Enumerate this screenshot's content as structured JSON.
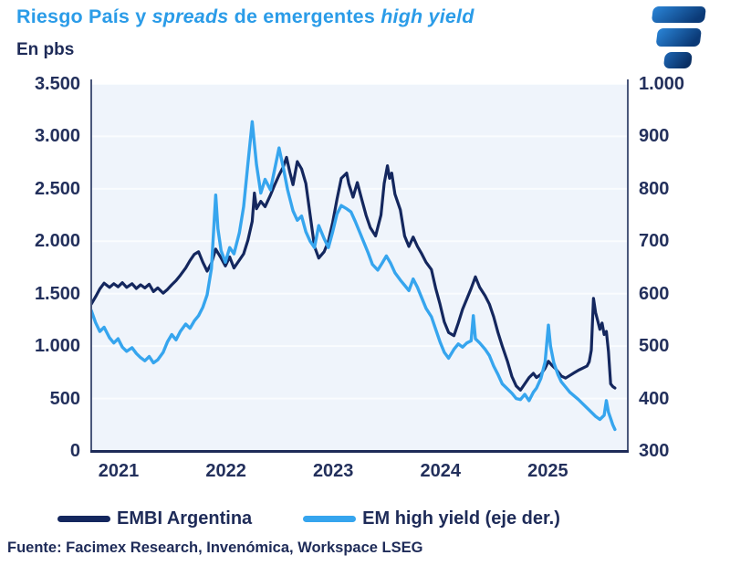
{
  "header": {
    "title_part1": "Riesgo País y ",
    "title_italic1": "spreads",
    "title_part2": " de emergentes ",
    "title_italic2": "high yield",
    "subtitle": "En pbs"
  },
  "colors": {
    "title_blue": "#2B9CE8",
    "text_navy": "#1E2B58",
    "embi_line": "#14275E",
    "emhy_line": "#36A5EE",
    "plot_bg": "#EFF4FB",
    "gridline": "#FAFCFE",
    "axis_border": "#1E2B58",
    "logo_light": "#2A85D8",
    "logo_dark": "#0B3A77"
  },
  "legend": [
    {
      "label": "EMBI Argentina",
      "color": "#14275E"
    },
    {
      "label": "EM high yield (eje der.)",
      "color": "#36A5EE"
    }
  ],
  "footer": {
    "source": "Fuente: Facimex Research, Invenómica, Workspace LSEG"
  },
  "chart_data": {
    "type": "line",
    "title": "Riesgo País y spreads de emergentes high yield",
    "units": "pbs",
    "x_axis": {
      "ticks": [
        "2021",
        "2022",
        "2023",
        "2024",
        "2025"
      ],
      "range": [
        2021,
        2026
      ]
    },
    "left_axis": {
      "ticks": [
        "3.500",
        "3.000",
        "2.500",
        "2.000",
        "1.500",
        "1.000",
        "500",
        "0"
      ],
      "range": [
        0,
        3500
      ]
    },
    "right_axis": {
      "ticks": [
        "1.000",
        "900",
        "800",
        "700",
        "600",
        "500",
        "400",
        "300"
      ],
      "range": [
        300,
        1000
      ]
    },
    "grid": true,
    "legend_position": "bottom",
    "series": [
      {
        "name": "EMBI Argentina",
        "axis": "left",
        "color": "#14275E",
        "points": [
          [
            2021.0,
            1400
          ],
          [
            2021.04,
            1470
          ],
          [
            2021.08,
            1545
          ],
          [
            2021.12,
            1600
          ],
          [
            2021.17,
            1560
          ],
          [
            2021.21,
            1595
          ],
          [
            2021.25,
            1565
          ],
          [
            2021.29,
            1605
          ],
          [
            2021.33,
            1560
          ],
          [
            2021.38,
            1595
          ],
          [
            2021.42,
            1550
          ],
          [
            2021.46,
            1585
          ],
          [
            2021.5,
            1555
          ],
          [
            2021.54,
            1590
          ],
          [
            2021.58,
            1520
          ],
          [
            2021.62,
            1555
          ],
          [
            2021.67,
            1505
          ],
          [
            2021.71,
            1540
          ],
          [
            2021.75,
            1585
          ],
          [
            2021.79,
            1625
          ],
          [
            2021.83,
            1675
          ],
          [
            2021.88,
            1745
          ],
          [
            2021.92,
            1815
          ],
          [
            2021.96,
            1875
          ],
          [
            2022.0,
            1900
          ],
          [
            2022.04,
            1800
          ],
          [
            2022.08,
            1715
          ],
          [
            2022.12,
            1790
          ],
          [
            2022.16,
            1925
          ],
          [
            2022.21,
            1840
          ],
          [
            2022.25,
            1765
          ],
          [
            2022.29,
            1850
          ],
          [
            2022.33,
            1745
          ],
          [
            2022.38,
            1820
          ],
          [
            2022.42,
            1880
          ],
          [
            2022.46,
            2010
          ],
          [
            2022.5,
            2190
          ],
          [
            2022.52,
            2460
          ],
          [
            2022.54,
            2310
          ],
          [
            2022.58,
            2380
          ],
          [
            2022.62,
            2330
          ],
          [
            2022.67,
            2440
          ],
          [
            2022.71,
            2540
          ],
          [
            2022.75,
            2630
          ],
          [
            2022.79,
            2710
          ],
          [
            2022.82,
            2800
          ],
          [
            2022.85,
            2660
          ],
          [
            2022.88,
            2540
          ],
          [
            2022.92,
            2760
          ],
          [
            2022.96,
            2690
          ],
          [
            2023.0,
            2550
          ],
          [
            2023.04,
            2250
          ],
          [
            2023.08,
            1950
          ],
          [
            2023.12,
            1840
          ],
          [
            2023.17,
            1900
          ],
          [
            2023.21,
            2000
          ],
          [
            2023.25,
            2180
          ],
          [
            2023.29,
            2400
          ],
          [
            2023.33,
            2600
          ],
          [
            2023.38,
            2650
          ],
          [
            2023.4,
            2550
          ],
          [
            2023.44,
            2420
          ],
          [
            2023.48,
            2560
          ],
          [
            2023.52,
            2400
          ],
          [
            2023.56,
            2250
          ],
          [
            2023.6,
            2130
          ],
          [
            2023.65,
            2050
          ],
          [
            2023.7,
            2250
          ],
          [
            2023.73,
            2550
          ],
          [
            2023.76,
            2720
          ],
          [
            2023.78,
            2600
          ],
          [
            2023.8,
            2650
          ],
          [
            2023.83,
            2450
          ],
          [
            2023.88,
            2300
          ],
          [
            2023.92,
            2050
          ],
          [
            2023.96,
            1950
          ],
          [
            2024.0,
            2040
          ],
          [
            2024.04,
            1950
          ],
          [
            2024.08,
            1880
          ],
          [
            2024.12,
            1800
          ],
          [
            2024.17,
            1730
          ],
          [
            2024.21,
            1550
          ],
          [
            2024.25,
            1400
          ],
          [
            2024.29,
            1230
          ],
          [
            2024.33,
            1130
          ],
          [
            2024.38,
            1100
          ],
          [
            2024.42,
            1220
          ],
          [
            2024.46,
            1350
          ],
          [
            2024.5,
            1450
          ],
          [
            2024.54,
            1550
          ],
          [
            2024.58,
            1660
          ],
          [
            2024.62,
            1560
          ],
          [
            2024.67,
            1480
          ],
          [
            2024.71,
            1400
          ],
          [
            2024.75,
            1280
          ],
          [
            2024.79,
            1130
          ],
          [
            2024.83,
            1000
          ],
          [
            2024.88,
            850
          ],
          [
            2024.92,
            710
          ],
          [
            2024.96,
            620
          ],
          [
            2025.0,
            580
          ],
          [
            2025.04,
            640
          ],
          [
            2025.08,
            700
          ],
          [
            2025.12,
            740
          ],
          [
            2025.15,
            700
          ],
          [
            2025.19,
            730
          ],
          [
            2025.23,
            790
          ],
          [
            2025.26,
            855
          ],
          [
            2025.29,
            820
          ],
          [
            2025.33,
            780
          ],
          [
            2025.38,
            715
          ],
          [
            2025.42,
            695
          ],
          [
            2025.46,
            720
          ],
          [
            2025.5,
            745
          ],
          [
            2025.54,
            770
          ],
          [
            2025.58,
            790
          ],
          [
            2025.62,
            810
          ],
          [
            2025.64,
            850
          ],
          [
            2025.66,
            960
          ],
          [
            2025.68,
            1456
          ],
          [
            2025.7,
            1320
          ],
          [
            2025.72,
            1240
          ],
          [
            2025.74,
            1160
          ],
          [
            2025.76,
            1220
          ],
          [
            2025.78,
            1110
          ],
          [
            2025.8,
            1140
          ],
          [
            2025.82,
            950
          ],
          [
            2025.84,
            640
          ],
          [
            2025.86,
            615
          ],
          [
            2025.88,
            600
          ]
        ]
      },
      {
        "name": "EM high yield (eje der.)",
        "axis": "right",
        "color": "#36A5EE",
        "points": [
          [
            2021.0,
            568
          ],
          [
            2021.04,
            545
          ],
          [
            2021.08,
            528
          ],
          [
            2021.12,
            536
          ],
          [
            2021.17,
            516
          ],
          [
            2021.21,
            506
          ],
          [
            2021.25,
            514
          ],
          [
            2021.29,
            498
          ],
          [
            2021.33,
            490
          ],
          [
            2021.38,
            497
          ],
          [
            2021.42,
            486
          ],
          [
            2021.46,
            478
          ],
          [
            2021.5,
            472
          ],
          [
            2021.54,
            480
          ],
          [
            2021.58,
            468
          ],
          [
            2021.62,
            474
          ],
          [
            2021.67,
            488
          ],
          [
            2021.71,
            508
          ],
          [
            2021.75,
            522
          ],
          [
            2021.79,
            512
          ],
          [
            2021.83,
            528
          ],
          [
            2021.88,
            542
          ],
          [
            2021.92,
            534
          ],
          [
            2021.96,
            548
          ],
          [
            2022.0,
            558
          ],
          [
            2022.04,
            574
          ],
          [
            2022.08,
            598
          ],
          [
            2022.12,
            648
          ],
          [
            2022.16,
            788
          ],
          [
            2022.18,
            724
          ],
          [
            2022.21,
            682
          ],
          [
            2022.25,
            660
          ],
          [
            2022.29,
            688
          ],
          [
            2022.33,
            676
          ],
          [
            2022.38,
            716
          ],
          [
            2022.42,
            766
          ],
          [
            2022.46,
            848
          ],
          [
            2022.5,
            928
          ],
          [
            2022.52,
            886
          ],
          [
            2022.54,
            846
          ],
          [
            2022.58,
            792
          ],
          [
            2022.62,
            818
          ],
          [
            2022.67,
            798
          ],
          [
            2022.71,
            838
          ],
          [
            2022.75,
            878
          ],
          [
            2022.79,
            840
          ],
          [
            2022.83,
            798
          ],
          [
            2022.88,
            758
          ],
          [
            2022.92,
            740
          ],
          [
            2022.96,
            748
          ],
          [
            2023.0,
            718
          ],
          [
            2023.04,
            700
          ],
          [
            2023.08,
            688
          ],
          [
            2023.12,
            730
          ],
          [
            2023.17,
            705
          ],
          [
            2023.21,
            688
          ],
          [
            2023.25,
            718
          ],
          [
            2023.29,
            752
          ],
          [
            2023.33,
            768
          ],
          [
            2023.38,
            762
          ],
          [
            2023.42,
            756
          ],
          [
            2023.46,
            738
          ],
          [
            2023.5,
            718
          ],
          [
            2023.54,
            698
          ],
          [
            2023.58,
            678
          ],
          [
            2023.62,
            656
          ],
          [
            2023.67,
            645
          ],
          [
            2023.71,
            658
          ],
          [
            2023.75,
            672
          ],
          [
            2023.79,
            658
          ],
          [
            2023.83,
            640
          ],
          [
            2023.88,
            626
          ],
          [
            2023.92,
            616
          ],
          [
            2023.96,
            606
          ],
          [
            2024.0,
            628
          ],
          [
            2024.04,
            612
          ],
          [
            2024.08,
            592
          ],
          [
            2024.12,
            572
          ],
          [
            2024.17,
            556
          ],
          [
            2024.21,
            532
          ],
          [
            2024.25,
            508
          ],
          [
            2024.29,
            488
          ],
          [
            2024.33,
            477
          ],
          [
            2024.38,
            494
          ],
          [
            2024.42,
            504
          ],
          [
            2024.46,
            498
          ],
          [
            2024.5,
            506
          ],
          [
            2024.54,
            510
          ],
          [
            2024.56,
            558
          ],
          [
            2024.58,
            514
          ],
          [
            2024.62,
            506
          ],
          [
            2024.67,
            494
          ],
          [
            2024.71,
            482
          ],
          [
            2024.75,
            462
          ],
          [
            2024.79,
            446
          ],
          [
            2024.83,
            428
          ],
          [
            2024.88,
            418
          ],
          [
            2024.92,
            410
          ],
          [
            2024.96,
            400
          ],
          [
            2025.0,
            398
          ],
          [
            2025.04,
            408
          ],
          [
            2025.08,
            396
          ],
          [
            2025.12,
            412
          ],
          [
            2025.15,
            420
          ],
          [
            2025.19,
            438
          ],
          [
            2025.23,
            470
          ],
          [
            2025.26,
            540
          ],
          [
            2025.28,
            500
          ],
          [
            2025.31,
            468
          ],
          [
            2025.35,
            445
          ],
          [
            2025.38,
            432
          ],
          [
            2025.42,
            422
          ],
          [
            2025.46,
            412
          ],
          [
            2025.5,
            405
          ],
          [
            2025.54,
            398
          ],
          [
            2025.58,
            390
          ],
          [
            2025.62,
            382
          ],
          [
            2025.66,
            374
          ],
          [
            2025.7,
            366
          ],
          [
            2025.74,
            360
          ],
          [
            2025.78,
            368
          ],
          [
            2025.8,
            396
          ],
          [
            2025.82,
            374
          ],
          [
            2025.84,
            362
          ],
          [
            2025.86,
            350
          ],
          [
            2025.88,
            341
          ]
        ]
      }
    ]
  }
}
